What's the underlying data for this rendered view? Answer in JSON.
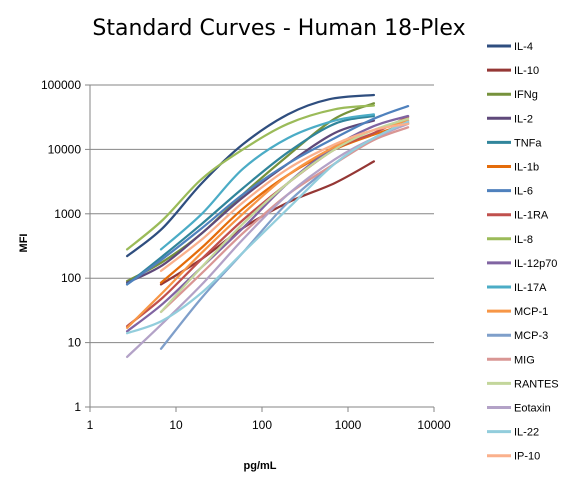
{
  "chart_data": {
    "type": "line",
    "title": "Standard Curves - Human 18-Plex",
    "xlabel": "pg/mL",
    "ylabel": "MFI",
    "x_scale": "log",
    "y_scale": "log",
    "xlim": [
      1,
      10000
    ],
    "ylim": [
      1,
      100000
    ],
    "x_ticks": [
      "1",
      "10",
      "100",
      "1000",
      "10000"
    ],
    "y_ticks": [
      "1",
      "10",
      "100",
      "1000",
      "10000",
      "100000"
    ],
    "grid": "horizontal",
    "legend_position": "right",
    "series": [
      {
        "name": "IL-4",
        "color": "#2f4e7f",
        "x": [
          2.7,
          7,
          20,
          60,
          200,
          600,
          2000
        ],
        "y": [
          220,
          600,
          3000,
          12000,
          35000,
          60000,
          70000
        ]
      },
      {
        "name": "IL-10",
        "color": "#953735",
        "x": [
          6.7,
          20,
          60,
          200,
          700,
          2000
        ],
        "y": [
          80,
          200,
          600,
          1500,
          3000,
          6500
        ]
      },
      {
        "name": "IFNg",
        "color": "#76923c",
        "x": [
          2.7,
          7,
          20,
          60,
          200,
          700,
          2000
        ],
        "y": [
          90,
          180,
          500,
          2000,
          8000,
          30000,
          52000
        ]
      },
      {
        "name": "IL-2",
        "color": "#5f497a",
        "x": [
          2.7,
          7,
          20,
          60,
          200,
          700,
          2000
        ],
        "y": [
          85,
          160,
          500,
          1800,
          6000,
          18000,
          28000
        ]
      },
      {
        "name": "TNFa",
        "color": "#31859b",
        "x": [
          2.7,
          7,
          20,
          60,
          200,
          700,
          2000
        ],
        "y": [
          80,
          220,
          700,
          2500,
          9000,
          25000,
          33000
        ]
      },
      {
        "name": "IL-1b",
        "color": "#e46c0a",
        "x": [
          6.7,
          20,
          60,
          200,
          700,
          2000,
          5000
        ],
        "y": [
          85,
          300,
          1200,
          4000,
          10000,
          17000,
          25000
        ]
      },
      {
        "name": "IL-6",
        "color": "#4f81bd",
        "x": [
          2.7,
          7,
          20,
          60,
          200,
          700,
          2000,
          5000
        ],
        "y": [
          80,
          200,
          600,
          2000,
          6000,
          15000,
          30000,
          47000
        ]
      },
      {
        "name": "IL-1RA",
        "color": "#c0504d",
        "x": [
          2.7,
          7,
          20,
          60,
          200,
          700,
          2000,
          5000
        ],
        "y": [
          18,
          50,
          200,
          800,
          3000,
          10000,
          18000,
          32000
        ]
      },
      {
        "name": "IL-8",
        "color": "#9bbb59",
        "x": [
          2.7,
          7,
          20,
          60,
          200,
          700,
          2000
        ],
        "y": [
          280,
          800,
          3500,
          10000,
          25000,
          42000,
          48000
        ]
      },
      {
        "name": "IL-12p70",
        "color": "#8064a2",
        "x": [
          2.7,
          7,
          20,
          60,
          200,
          700,
          2000,
          5000
        ],
        "y": [
          15,
          40,
          150,
          600,
          3000,
          11000,
          23000,
          33000
        ]
      },
      {
        "name": "IL-17A",
        "color": "#4bacc6",
        "x": [
          6.7,
          20,
          60,
          200,
          700,
          2000
        ],
        "y": [
          280,
          1000,
          5000,
          15000,
          28000,
          35000
        ]
      },
      {
        "name": "MCP-1",
        "color": "#f79646",
        "x": [
          2.7,
          7,
          20,
          60,
          200,
          700,
          2000,
          5000
        ],
        "y": [
          17,
          60,
          250,
          1000,
          4000,
          11000,
          20000,
          28000
        ]
      },
      {
        "name": "MCP-3",
        "color": "#7f9fca",
        "x": [
          6.7,
          20,
          60,
          200,
          700,
          2000,
          5000
        ],
        "y": [
          8,
          50,
          250,
          1500,
          6000,
          15000,
          26000
        ]
      },
      {
        "name": "MIG",
        "color": "#d99694",
        "x": [
          6.7,
          20,
          60,
          200,
          700,
          2000,
          5000
        ],
        "y": [
          30,
          120,
          500,
          2000,
          6000,
          14000,
          22000
        ]
      },
      {
        "name": "RANTES",
        "color": "#c3d69b",
        "x": [
          6.7,
          20,
          60,
          200,
          700,
          2000,
          5000
        ],
        "y": [
          30,
          150,
          700,
          3000,
          10000,
          20000,
          30000
        ]
      },
      {
        "name": "Eotaxin",
        "color": "#b3a2c7",
        "x": [
          2.7,
          7,
          20,
          60,
          200,
          700,
          2000,
          5000
        ],
        "y": [
          6,
          20,
          80,
          400,
          2000,
          7000,
          15000,
          25000
        ]
      },
      {
        "name": "IL-22",
        "color": "#92cddc",
        "x": [
          2.7,
          7,
          20,
          60,
          200,
          700,
          2000,
          5000
        ],
        "y": [
          14,
          22,
          60,
          250,
          1200,
          6000,
          15000,
          27000
        ]
      },
      {
        "name": "IP-10",
        "color": "#fab08c",
        "x": [
          6.7,
          20,
          60,
          200,
          700,
          2000,
          5000
        ],
        "y": [
          130,
          400,
          1500,
          5000,
          12000,
          20000,
          25000
        ]
      }
    ]
  }
}
